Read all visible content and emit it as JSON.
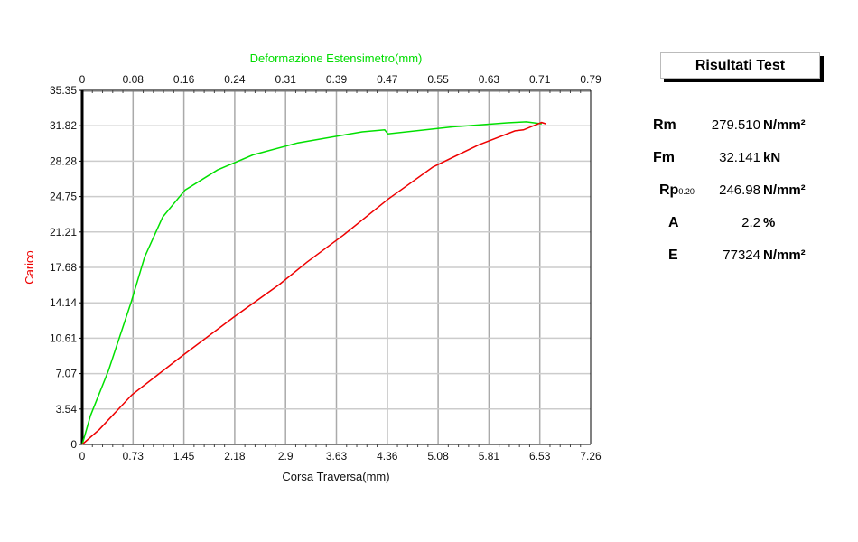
{
  "chart_data": {
    "type": "line",
    "title": "",
    "xlabel": "Corsa Traversa(mm)",
    "x2label": "Deformazione Estensimetro(mm)",
    "ylabel": "Carico",
    "xlim": [
      0,
      7.26
    ],
    "x2lim": [
      0,
      0.79
    ],
    "ylim": [
      0,
      35.35
    ],
    "xticks": [
      "0",
      "0.73",
      "1.45",
      "2.18",
      "2.9",
      "3.63",
      "4.36",
      "5.08",
      "5.81",
      "6.53",
      "7.26"
    ],
    "x2ticks": [
      "0",
      "0.08",
      "0.16",
      "0.24",
      "0.31",
      "0.39",
      "0.47",
      "0.55",
      "0.63",
      "0.71",
      "0.79"
    ],
    "yticks": [
      "0",
      "3.54",
      "7.07",
      "10.61",
      "14.14",
      "17.68",
      "21.21",
      "24.75",
      "28.28",
      "31.82",
      "35.35"
    ],
    "grid": true,
    "series": [
      {
        "name": "Deformazione Estensimetro",
        "axis": "top",
        "color": "#00e000",
        "x": [
          0,
          0.013,
          0.041,
          0.076,
          0.097,
          0.125,
          0.16,
          0.21,
          0.265,
          0.335,
          0.435,
          0.47,
          0.475,
          0.575,
          0.66,
          0.69,
          0.714
        ],
        "y": [
          0,
          2.9,
          7.4,
          14.2,
          18.7,
          22.7,
          25.4,
          27.4,
          28.9,
          30.1,
          31.2,
          31.4,
          31.0,
          31.7,
          32.1,
          32.2,
          32.0
        ]
      },
      {
        "name": "Corsa Traversa",
        "axis": "bottom",
        "color": "#ee0000",
        "x": [
          0,
          0.245,
          0.71,
          1.41,
          2.18,
          2.82,
          3.21,
          3.73,
          4.37,
          5.01,
          5.66,
          6.18,
          6.3,
          6.56,
          6.62
        ],
        "y": [
          0,
          1.5,
          4.96,
          8.75,
          12.8,
          16.0,
          18.2,
          20.9,
          24.5,
          27.7,
          29.9,
          31.3,
          31.4,
          32.14,
          32.0
        ]
      }
    ]
  },
  "results": {
    "title": "Risultati Test",
    "rows": [
      {
        "label": "Rm",
        "sub": "",
        "value": "279.510",
        "unit": "N/mm²"
      },
      {
        "label": "Fm",
        "sub": "",
        "value": "32.141",
        "unit": "kN"
      },
      {
        "label": "Rp",
        "sub": "0.20",
        "value": "246.98",
        "unit": "N/mm²"
      },
      {
        "label": "A",
        "sub": "",
        "value": "2.2",
        "unit": "%"
      },
      {
        "label": "E",
        "sub": "",
        "value": "77324",
        "unit": "N/mm²"
      }
    ]
  }
}
